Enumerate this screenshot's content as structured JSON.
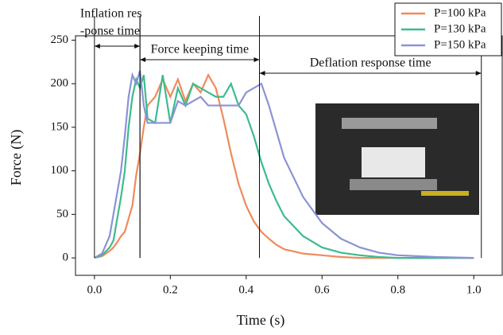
{
  "chart_data": {
    "type": "line",
    "x_label": "Time (s)",
    "y_label": "Force (N)",
    "x": [
      0,
      0.02,
      0.04,
      0.05,
      0.06,
      0.07,
      0.08,
      0.09,
      0.1,
      0.11,
      0.12,
      0.13,
      0.14,
      0.16,
      0.18,
      0.2,
      0.22,
      0.24,
      0.26,
      0.28,
      0.3,
      0.32,
      0.34,
      0.36,
      0.38,
      0.4,
      0.42,
      0.44,
      0.46,
      0.48,
      0.5,
      0.55,
      0.6,
      0.65,
      0.7,
      0.75,
      0.8,
      0.9,
      1.0
    ],
    "series": [
      {
        "name": "P=100 kPa",
        "color": "#f08a5d",
        "values": [
          0,
          2,
          8,
          12,
          18,
          25,
          30,
          45,
          60,
          95,
          120,
          150,
          175,
          185,
          205,
          185,
          205,
          180,
          200,
          190,
          210,
          195,
          160,
          120,
          85,
          60,
          42,
          30,
          22,
          15,
          10,
          5,
          3,
          1,
          0,
          0,
          0,
          0,
          0
        ]
      },
      {
        "name": "P=130 kPa",
        "color": "#3dbb8e",
        "values": [
          0,
          3,
          12,
          20,
          45,
          70,
          100,
          150,
          185,
          205,
          195,
          210,
          160,
          155,
          210,
          155,
          195,
          175,
          200,
          195,
          190,
          185,
          185,
          200,
          175,
          165,
          140,
          110,
          85,
          65,
          48,
          25,
          12,
          6,
          3,
          1,
          0,
          0,
          0
        ]
      },
      {
        "name": "P=150 kPa",
        "color": "#8a93d6",
        "values": [
          0,
          5,
          25,
          50,
          75,
          100,
          140,
          185,
          210,
          200,
          215,
          175,
          155,
          155,
          155,
          155,
          180,
          175,
          180,
          185,
          175,
          175,
          175,
          175,
          175,
          190,
          195,
          200,
          175,
          145,
          115,
          70,
          40,
          22,
          12,
          6,
          3,
          1,
          0
        ]
      }
    ],
    "xlim": [
      -0.05,
      1.075
    ],
    "ylim": [
      -20,
      255
    ],
    "xticks": [
      {
        "value": 0,
        "label": "0.0"
      },
      0.2,
      0.4,
      0.6,
      0.8,
      {
        "value": 1,
        "label": "1.0"
      }
    ],
    "yticks": [
      0,
      50,
      100,
      150,
      200,
      250
    ],
    "legend": "top-right",
    "phases": [
      {
        "label": [
          "Inflation res",
          "-ponse time"
        ],
        "start": 0,
        "end": 0.12
      },
      {
        "label": [
          "Force keeping time"
        ],
        "start": 0.12,
        "end": 0.435
      },
      {
        "label": [
          "Deflation response time"
        ],
        "start": 0.435,
        "end": 1.02
      }
    ]
  }
}
